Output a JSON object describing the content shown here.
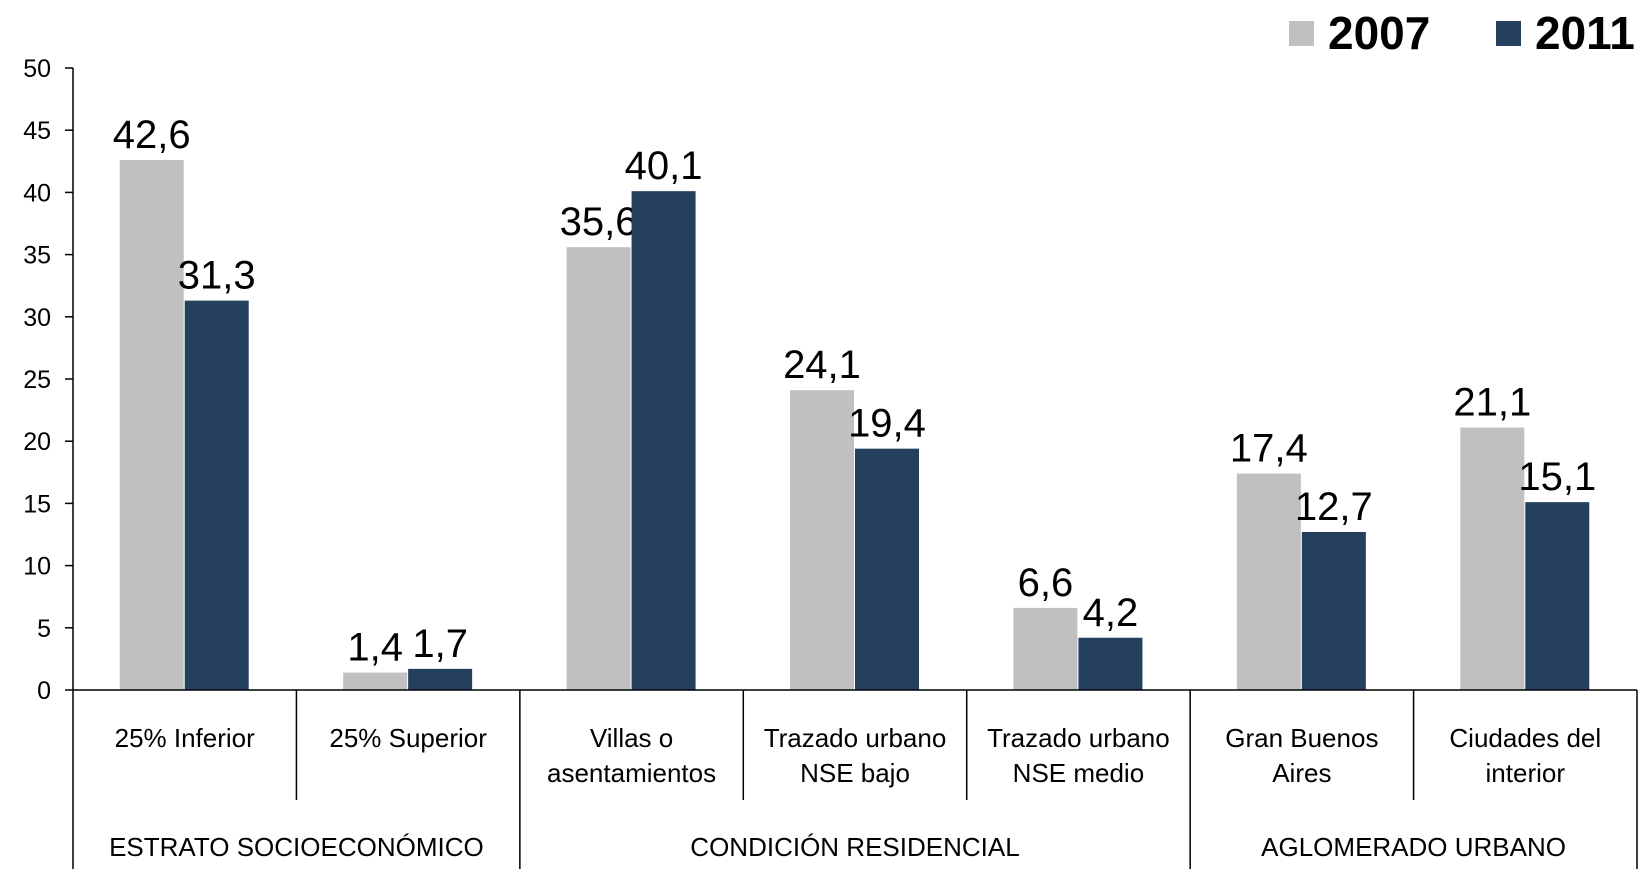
{
  "chart_data": {
    "type": "bar",
    "groups": [
      {
        "name": "ESTRATO SOCIOECONÓMICO",
        "categories": [
          "25% Inferior",
          "25% Superior"
        ]
      },
      {
        "name": "CONDICIÓN RESIDENCIAL",
        "categories": [
          "Villas o\nasentamientos",
          "Trazado urbano\nNSE bajo",
          "Trazado urbano\nNSE medio"
        ]
      },
      {
        "name": "AGLOMERADO URBANO",
        "categories": [
          "Gran Buenos\nAires",
          "Ciudades del\ninterior"
        ]
      }
    ],
    "series": [
      {
        "name": "2007",
        "color": "#c0c0c0",
        "values": [
          42.6,
          1.4,
          35.6,
          24.1,
          6.6,
          17.4,
          21.1
        ],
        "value_labels": [
          "42,6",
          "1,4",
          "35,6",
          "24,1",
          "6,6",
          "17,4",
          "21,1"
        ]
      },
      {
        "name": "2011",
        "color": "#253f5f",
        "values": [
          31.3,
          1.7,
          40.1,
          19.4,
          4.2,
          12.7,
          15.1
        ],
        "value_labels": [
          "31,3",
          "1,7",
          "40,1",
          "19,4",
          "4,2",
          "12,7",
          "15,1"
        ]
      }
    ],
    "ylim": [
      0,
      50
    ],
    "yticks": [
      0,
      5,
      10,
      15,
      20,
      25,
      30,
      35,
      40,
      45,
      50
    ],
    "legend": "top-right"
  }
}
